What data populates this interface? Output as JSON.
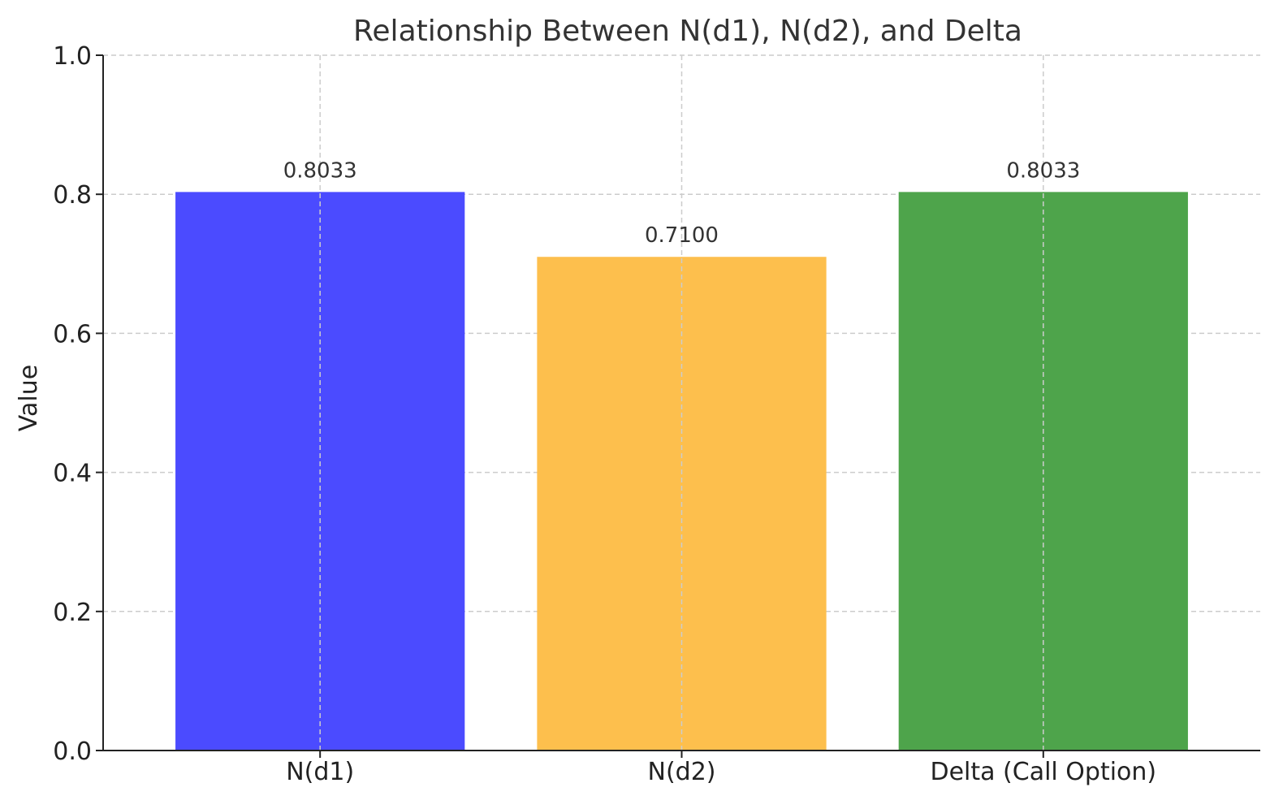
{
  "chart_data": {
    "type": "bar",
    "title": "Relationship Between N(d1), N(d2), and Delta",
    "xlabel": "",
    "ylabel": "Value",
    "categories": [
      "N(d1)",
      "N(d2)",
      "Delta (Call Option)"
    ],
    "values": [
      0.8033,
      0.71,
      0.8033
    ],
    "value_labels": [
      "0.8033",
      "0.7100",
      "0.8033"
    ],
    "colors": [
      "#4b4bff",
      "#fdbf4d",
      "#4ea44b"
    ],
    "ylim": [
      0,
      1.0
    ],
    "yticks": [
      0.0,
      0.2,
      0.4,
      0.6,
      0.8,
      1.0
    ],
    "ytick_labels": [
      "0.0",
      "0.2",
      "0.4",
      "0.6",
      "0.8",
      "1.0"
    ],
    "grid": true
  }
}
